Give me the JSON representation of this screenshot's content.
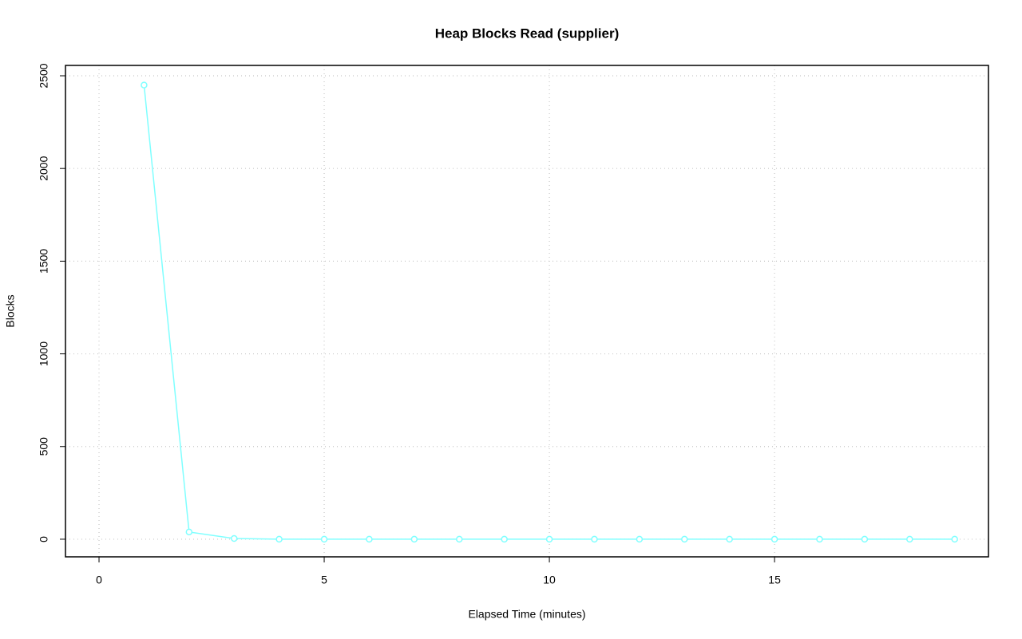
{
  "chart_data": {
    "type": "line",
    "title": "Heap Blocks Read (supplier)",
    "x_label": "Elapsed Time (minutes)",
    "y_label": "Blocks",
    "x": [
      1,
      2,
      3,
      4,
      5,
      6,
      7,
      8,
      9,
      10,
      11,
      12,
      13,
      14,
      15,
      16,
      17,
      18,
      19
    ],
    "series": [
      {
        "name": "supplier",
        "color": "#80ffff",
        "values": [
          2450,
          39,
          4,
          0,
          0,
          0,
          0,
          0,
          0,
          0,
          0,
          0,
          0,
          0,
          0,
          0,
          0,
          0,
          0
        ]
      }
    ],
    "xlim": [
      -0.745,
      19.75
    ],
    "ylim": [
      -95,
      2556
    ],
    "xticks": [
      0,
      5,
      10,
      15
    ],
    "yticks": [
      0,
      500,
      1000,
      1500,
      2000,
      2500
    ],
    "grid": true
  }
}
